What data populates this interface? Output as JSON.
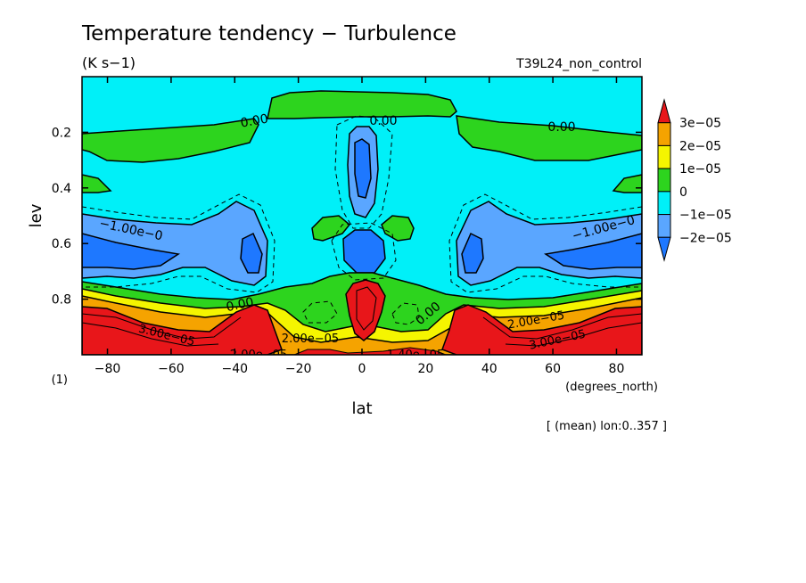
{
  "chart_data": {
    "type": "heatmap",
    "title": "Temperature tendency − Turbulence",
    "units": "(K s−1)",
    "run_label": "T39L24_non_control",
    "xlabel": "lat",
    "x_units": "(degrees_north)",
    "ylabel": "lev",
    "y_scale_note": "(1)",
    "footer": "[ (mean) lon:0..357 ]",
    "xlim": [
      -88,
      88
    ],
    "ylim": [
      1.0,
      0.0
    ],
    "x_ticks": [
      "−80",
      "−60",
      "−40",
      "−20",
      "0",
      "20",
      "40",
      "60",
      "80"
    ],
    "x_tick_values": [
      -80,
      -60,
      -40,
      -20,
      0,
      20,
      40,
      60,
      80
    ],
    "y_ticks": [
      "0.2",
      "0.4",
      "0.6",
      "0.8"
    ],
    "y_tick_values": [
      0.2,
      0.4,
      0.6,
      0.8
    ],
    "colorbar": {
      "labels": [
        "3e−05",
        "2e−05",
        "1e−05",
        "0",
        "−1e−05",
        "−2e−05"
      ],
      "levels": [
        3e-05,
        2e-05,
        1e-05,
        0,
        -1e-05,
        -2e-05
      ],
      "colors": [
        "#e8161a",
        "#f5a300",
        "#f5f500",
        "#2dd41e",
        "#00f0f8",
        "#5aa6ff",
        "#1e78ff"
      ]
    },
    "contour_labels": [
      "0.00",
      "0.00",
      "0.00",
      "0.00",
      "0.00",
      "0.00",
      "−1.00e−0",
      "−1.00e−0",
      "1.00e−05",
      "2.00e−05",
      "2.00e−05",
      "3.00e−05",
      "2.00e−05",
      "1.40e−05"
    ],
    "regions": [
      {
        "name": "stratosphere-positive-band-west",
        "sign": "positive",
        "value": 5e-06
      },
      {
        "name": "stratosphere-positive-band-center",
        "sign": "positive",
        "value": 5e-06
      },
      {
        "name": "stratosphere-positive-band-east",
        "sign": "positive",
        "value": 5e-06
      },
      {
        "name": "midlevel-cooling-west",
        "sign": "negative",
        "value": -1.5e-05
      },
      {
        "name": "midlevel-cooling-east",
        "sign": "negative",
        "value": -1.5e-05
      },
      {
        "name": "equatorial-upper-cooling",
        "sign": "negative",
        "value": -1.5e-05
      },
      {
        "name": "equatorial-midlevel-cooling",
        "sign": "negative",
        "value": -2e-05
      },
      {
        "name": "boundary-layer-heating-west",
        "sign": "positive",
        "value": 3e-05
      },
      {
        "name": "boundary-layer-heating-east",
        "sign": "positive",
        "value": 3e-05
      },
      {
        "name": "equatorial-boundary-heating",
        "sign": "positive",
        "value": 3e-05
      }
    ]
  }
}
